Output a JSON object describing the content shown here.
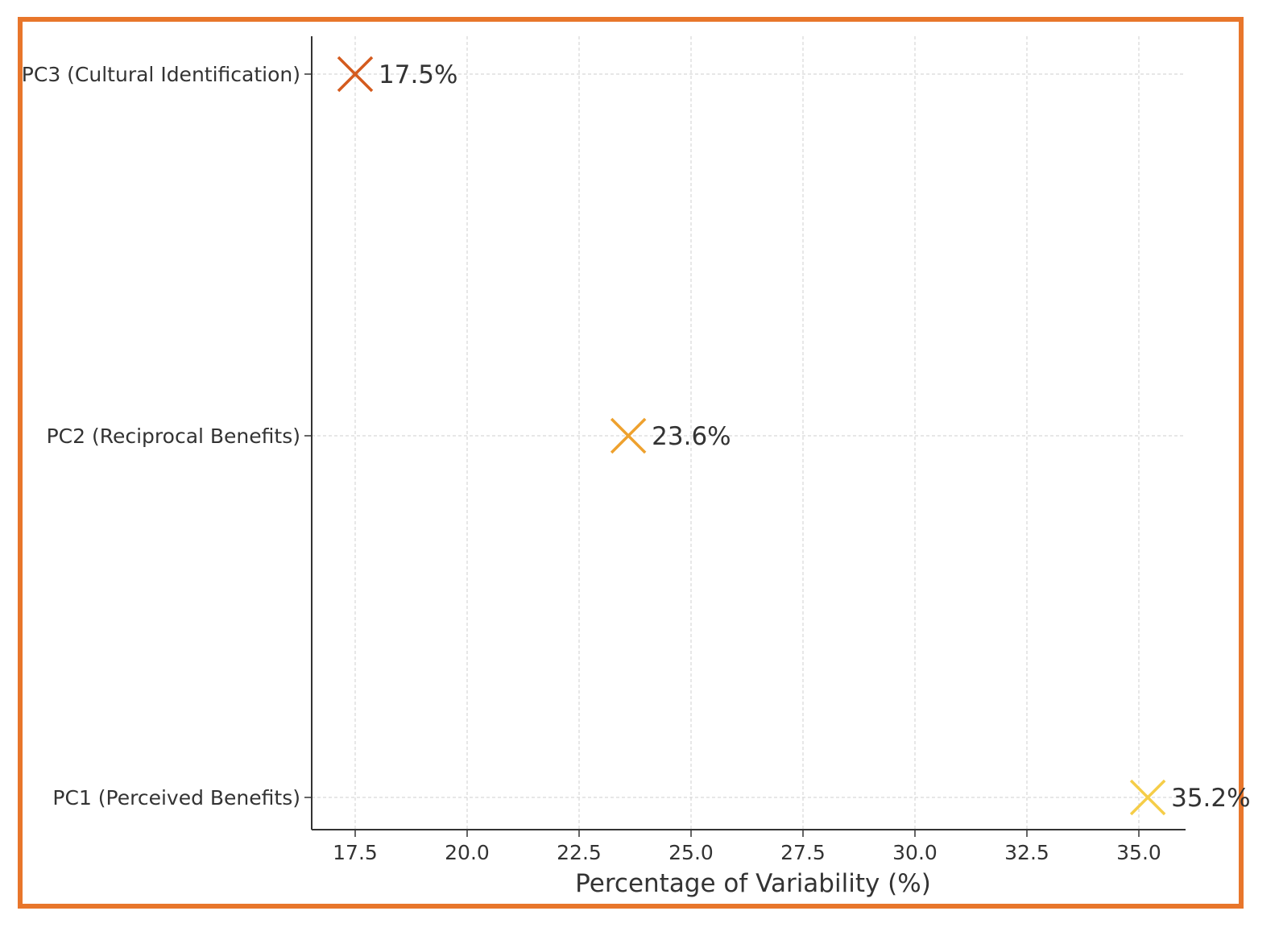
{
  "chart_data": {
    "type": "scatter",
    "title": "",
    "xlabel": "Percentage of Variability (%)",
    "ylabel": "",
    "xlim": [
      16.6,
      36.0
    ],
    "grid": true,
    "x_ticks": [
      "17.5",
      "20.0",
      "22.5",
      "25.0",
      "27.5",
      "30.0",
      "32.5",
      "35.0"
    ],
    "x_tick_values": [
      17.5,
      20.0,
      22.5,
      25.0,
      27.5,
      30.0,
      32.5,
      35.0
    ],
    "categories": [
      "PC3 (Cultural Identification)",
      "PC2 (Reciprocal Benefits)",
      "PC1 (Perceived Benefits)"
    ],
    "points": [
      {
        "category": "PC3 (Cultural Identification)",
        "x": 17.5,
        "label": "17.5%",
        "color": "#d45b1e",
        "marker": "x"
      },
      {
        "category": "PC2 (Reciprocal Benefits)",
        "x": 23.6,
        "label": "23.6%",
        "color": "#eea12e",
        "marker": "x"
      },
      {
        "category": "PC1 (Perceived Benefits)",
        "x": 35.2,
        "label": "35.2%",
        "color": "#f5cd48",
        "marker": "x"
      }
    ]
  },
  "frame": {
    "border_color": "#e8762b"
  }
}
